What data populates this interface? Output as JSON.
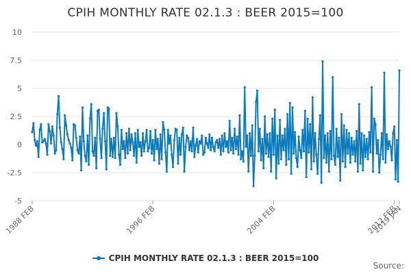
{
  "chart_data": {
    "type": "line",
    "title": "CPIH MONTHLY RATE 02.1.3 : BEER 2015=100",
    "x_tick_labels": [
      "1988 FEB",
      "1996 FEB",
      "2004 FEB",
      "2012 FEB",
      "2019 JAN"
    ],
    "y_tick_labels": [
      "10",
      "7.5",
      "5",
      "2.5",
      "0",
      "-2.5",
      "-5"
    ],
    "ylim": [
      -5,
      10
    ],
    "grid": "horizontal",
    "legend_position": "bottom",
    "color": "#0b7bbd",
    "series": [
      {
        "name": "CPIH MONTHLY RATE 02.1.3 : BEER 2015=100",
        "x_start": "1988-02",
        "values": [
          1.1,
          1.9,
          0.4,
          -0.1,
          0.3,
          -1.1,
          1.3,
          1.8,
          0.2,
          0.3,
          0.5,
          0.1,
          -0.9,
          1.8,
          1.2,
          0.1,
          1.6,
          0.8,
          -0.8,
          -0.5,
          2.7,
          4.3,
          1.5,
          0.2,
          -0.4,
          -1.3,
          2.6,
          1.7,
          0.9,
          0.4,
          0.1,
          -0.3,
          -1.4,
          1.8,
          1.7,
          0.6,
          -0.5,
          -0.8,
          0.7,
          -2.3,
          3.3,
          0.3,
          -1.0,
          -1.5,
          0.8,
          -1.8,
          2.3,
          3.6,
          -0.6,
          -1.0,
          0.6,
          -2.1,
          3.0,
          3.1,
          0.5,
          -1.2,
          1.4,
          2.8,
          0.3,
          -2.2,
          3.3,
          3.2,
          -1.0,
          0.5,
          -1.1,
          0.6,
          -1.2,
          2.8,
          1.6,
          -0.9,
          -1.8,
          1.3,
          -0.4,
          0.3,
          -1.2,
          1.0,
          -0.8,
          1.4,
          -0.5,
          0.9,
          0.2,
          -1.0,
          1.0,
          -1.6,
          1.3,
          -0.2,
          0.2,
          -1.0,
          1.0,
          -0.6,
          0.3,
          1.3,
          -0.6,
          -0.3,
          1.2,
          -0.8,
          0.4,
          -1.4,
          1.3,
          -0.4,
          0.5,
          -1.7,
          0.9,
          -1.3,
          2.0,
          1.3,
          -0.7,
          -2.4,
          1.3,
          0.1,
          0.8,
          -0.9,
          -2.0,
          0.4,
          1.4,
          1.3,
          -1.7,
          0.6,
          -0.9,
          0.9,
          1.5,
          -2.4,
          -0.2,
          0.8,
          0.6,
          -0.5,
          0.3,
          -0.6,
          1.5,
          -1.1,
          -0.1,
          0.5,
          -0.7,
          0.3,
          0.1,
          0.8,
          -0.9,
          -0.7,
          0.6,
          0.1,
          -0.3,
          0.9,
          -0.5,
          0.6,
          -0.2,
          -0.6,
          0.2,
          0.4,
          -0.3,
          0.5,
          -0.9,
          0.8,
          -0.6,
          1.0,
          -0.2,
          0.3,
          -0.7,
          2.1,
          -0.5,
          0.6,
          -0.8,
          1.4,
          -0.4,
          0.7,
          -0.9,
          2.6,
          -1.3,
          -0.6,
          -1.5,
          5.1,
          -0.2,
          0.8,
          -2.4,
          1.0,
          -1.0,
          1.7,
          -3.7,
          -1.0,
          3.8,
          4.8,
          -0.6,
          1.4,
          -1.4,
          0.5,
          -2.1,
          2.5,
          -0.8,
          0.9,
          -1.1,
          1.0,
          -2.4,
          2.3,
          -0.9,
          3.1,
          -3.0,
          0.8,
          -1.7,
          2.2,
          -1.3,
          0.8,
          -0.5,
          1.4,
          -1.8,
          2.7,
          -1.3,
          3.7,
          -2.6,
          3.3,
          -0.8,
          1.1,
          -1.2,
          -2.0,
          0.7,
          -0.5,
          -1.2,
          1.3,
          -0.6,
          3.0,
          -2.9,
          2.3,
          -0.7,
          1.8,
          -2.2,
          4.2,
          -1.5,
          1.0,
          -0.9,
          -2.6,
          0.5,
          2.6,
          -3.4,
          7.4,
          -1.2,
          0.8,
          -1.6,
          1.0,
          -2.4,
          1.2,
          -1.3,
          6.0,
          -1.0,
          -1.8,
          1.4,
          -1.1,
          0.6,
          -3.2,
          2.7,
          -1.5,
          1.7,
          -2.0,
          1.3,
          -0.8,
          1.0,
          -1.6,
          0.6,
          -0.9,
          0.3,
          -1.5,
          1.2,
          -2.4,
          3.6,
          -1.7,
          1.0,
          -2.3,
          0.8,
          -1.1,
          0.5,
          -1.3,
          1.1,
          -0.7,
          5.1,
          -2.4,
          2.3,
          1.8,
          -0.8,
          0.4,
          -2.5,
          -0.9,
          1.0,
          -1.3,
          6.4,
          -1.6,
          0.9,
          -0.4,
          0.3,
          -0.2,
          -1.4,
          1.0,
          1.6,
          -3.1,
          0.4,
          -3.3,
          6.6
        ]
      }
    ]
  },
  "legend": {
    "label": "CPIH MONTHLY RATE 02.1.3 : BEER 2015=100"
  },
  "footer": {
    "source_label": "Source:"
  }
}
